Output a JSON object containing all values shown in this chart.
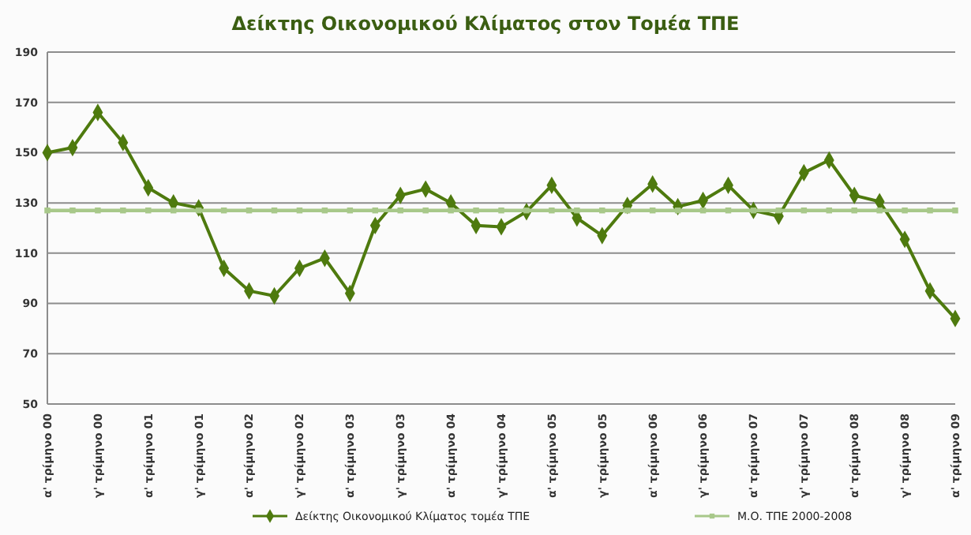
{
  "chart_data": {
    "type": "line",
    "title": "Δείκτης Οικονομικού  Κλίματος στον Τομέα ΤΠΕ",
    "categories": [
      "α' τρίμηνο 00",
      null,
      "γ' τρίμηνο 00",
      null,
      "α' τρίμηνο 01",
      null,
      "γ' τρίμηνο 01",
      null,
      "α' τρίμηνο 02",
      null,
      "γ' τρίμηνο 02",
      null,
      "α' τρίμηνο 03",
      null,
      "γ' τρίμηνο 03",
      null,
      "α' τρίμηνο 04",
      null,
      "γ' τρίμηνο 04",
      null,
      "α' τρίμηνο 05",
      null,
      "γ' τρίμηνο 05",
      null,
      "α' τρίμηνο 06",
      null,
      "γ' τρίμηνο 06",
      null,
      "α' τρίμηνο 07",
      null,
      "γ' τρίμηνο 07",
      null,
      "α' τρίμηνο 08",
      null,
      "γ' τρίμηνο 08",
      null,
      "α' τρίμηνο 09"
    ],
    "series": [
      {
        "name": "Δείκτης Οικονομικού Κλίματος τομέα ΤΠΕ",
        "color": "#4e7a0e",
        "marker": "diamond",
        "values": [
          150,
          152,
          166,
          154,
          136,
          130,
          128,
          104,
          95,
          93,
          104,
          108,
          94,
          121,
          133,
          135.5,
          130,
          121,
          120.5,
          126.5,
          137,
          124,
          117,
          129,
          137.5,
          128.5,
          131,
          137,
          127,
          124.7,
          142,
          147,
          133,
          130.5,
          115.5,
          95,
          84
        ]
      },
      {
        "name": "Μ.Ο. ΤΠΕ 2000-2008",
        "color": "#a8c88a",
        "marker": "square",
        "values": [
          127,
          127,
          127,
          127,
          127,
          127,
          127,
          127,
          127,
          127,
          127,
          127,
          127,
          127,
          127,
          127,
          127,
          127,
          127,
          127,
          127,
          127,
          127,
          127,
          127,
          127,
          127,
          127,
          127,
          127,
          127,
          127,
          127,
          127,
          127,
          127,
          127
        ]
      }
    ],
    "ylim": [
      50,
      190
    ],
    "yticks": [
      50,
      70,
      90,
      110,
      130,
      150,
      170,
      190
    ],
    "grid": "y",
    "legend": "bottom",
    "line_style": "solid"
  }
}
